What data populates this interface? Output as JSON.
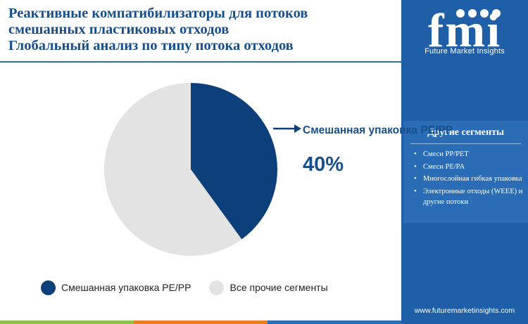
{
  "title": {
    "lines": [
      "Реактивные компатибилизаторы для потоков",
      "смешанных пластиковых отходов",
      "Глобальный анализ по типу потока отходов"
    ]
  },
  "brand": {
    "logo_text": "fmi",
    "name": "Future Market Insights",
    "website": "www.futuremarketinsights.com",
    "sidebar_color": "#1f5fa7",
    "bottom_bar_colors": [
      "#8bc34a",
      "#e67e22",
      "#2d6fb4"
    ]
  },
  "other_segments": {
    "title": "Другие сегменты",
    "items": [
      "Смеси PP/PET",
      "Смеси PE/PA",
      "Многослойная гибкая упаковка",
      "Электронные отходы (WEEE) и другие потоки"
    ]
  },
  "chart_data": {
    "type": "pie",
    "slices": [
      {
        "label": "Смешанная упаковка PE/PP",
        "value": 40,
        "color": "#0d3f7a"
      },
      {
        "label": "Все прочие сегменты",
        "value": 60,
        "color": "#e3e3e3"
      }
    ],
    "callout": {
      "label": "Смешанная упаковка PE/PP",
      "value_text": "40%"
    },
    "legend": {
      "placement": "bottom-left",
      "items": [
        "Смешанная упаковка PE/PP",
        "Все прочие сегменты"
      ]
    }
  }
}
